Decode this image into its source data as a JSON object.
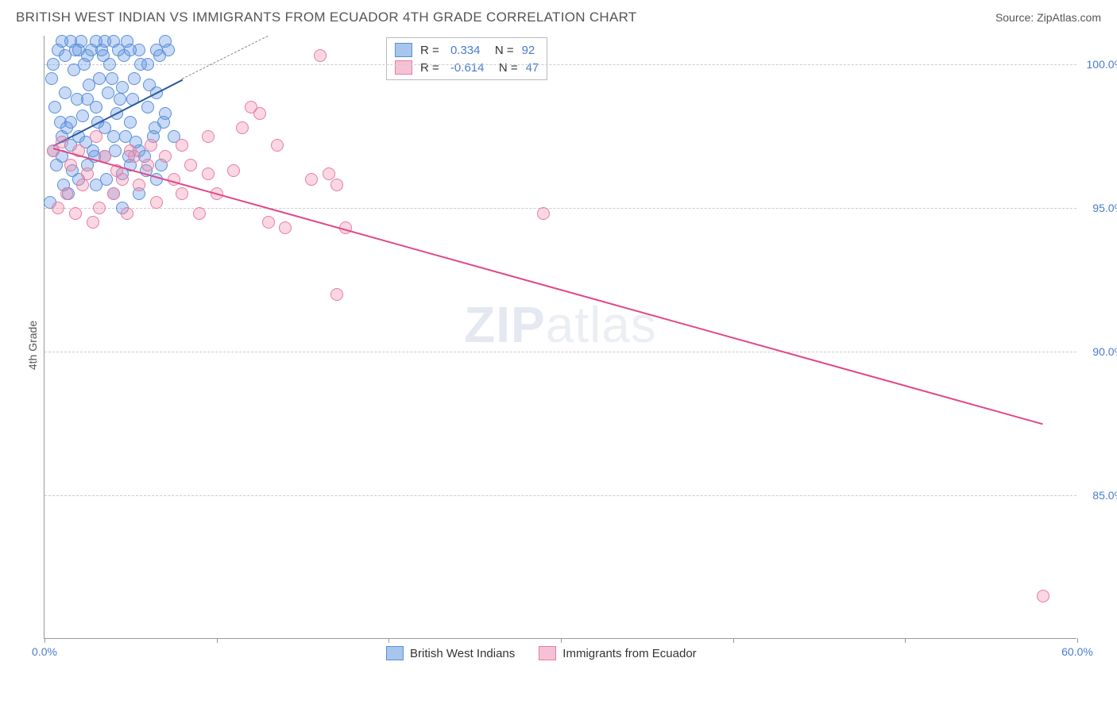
{
  "header": {
    "title": "BRITISH WEST INDIAN VS IMMIGRANTS FROM ECUADOR 4TH GRADE CORRELATION CHART",
    "source": "Source: ZipAtlas.com"
  },
  "chart": {
    "type": "scatter",
    "ylabel": "4th Grade",
    "xlim": [
      0,
      60
    ],
    "ylim": [
      80,
      101
    ],
    "xticks": [
      0,
      10,
      20,
      30,
      40,
      50,
      60
    ],
    "xtick_labels_shown": {
      "0": "0.0%",
      "60": "60.0%"
    },
    "yticks": [
      85,
      90,
      95,
      100
    ],
    "ytick_labels": {
      "85": "85.0%",
      "90": "90.0%",
      "95": "95.0%",
      "100": "100.0%"
    },
    "background_color": "#ffffff",
    "grid_color": "#cccccc",
    "axis_color": "#999999",
    "tick_label_color": "#4a7bd0",
    "watermark": {
      "text_bold": "ZIP",
      "text_rest": "atlas"
    },
    "series": [
      {
        "name": "British West Indians",
        "color_fill": "rgba(100,150,230,0.35)",
        "color_stroke": "#5a8fd6",
        "legend_swatch_fill": "#a8c5ed",
        "legend_swatch_border": "#5a8fd6",
        "R": "0.334",
        "N": "92",
        "trend": {
          "x1": 0.5,
          "y1": 97.2,
          "x2": 8.0,
          "y2": 99.5,
          "color": "#2c5aa0",
          "width": 2
        },
        "trend_ext": {
          "x1": 8.0,
          "y1": 99.5,
          "x2": 13.0,
          "y2": 101.0,
          "color": "#888",
          "dashed": true
        },
        "points": [
          [
            0.3,
            95.2
          ],
          [
            0.5,
            97.0
          ],
          [
            0.6,
            98.5
          ],
          [
            0.8,
            100.5
          ],
          [
            1.0,
            96.8
          ],
          [
            1.0,
            97.5
          ],
          [
            1.2,
            99.0
          ],
          [
            1.2,
            100.3
          ],
          [
            1.4,
            95.5
          ],
          [
            1.5,
            97.2
          ],
          [
            1.5,
            98.0
          ],
          [
            1.7,
            99.8
          ],
          [
            1.8,
            100.5
          ],
          [
            2.0,
            96.0
          ],
          [
            2.0,
            97.5
          ],
          [
            2.2,
            98.2
          ],
          [
            2.3,
            100.0
          ],
          [
            2.5,
            96.5
          ],
          [
            2.5,
            98.8
          ],
          [
            2.7,
            100.5
          ],
          [
            2.8,
            97.0
          ],
          [
            3.0,
            95.8
          ],
          [
            3.0,
            98.5
          ],
          [
            3.2,
            99.5
          ],
          [
            3.3,
            100.5
          ],
          [
            3.5,
            96.8
          ],
          [
            3.5,
            97.8
          ],
          [
            3.7,
            99.0
          ],
          [
            3.8,
            100.0
          ],
          [
            4.0,
            95.5
          ],
          [
            4.0,
            97.5
          ],
          [
            4.2,
            98.3
          ],
          [
            4.3,
            100.5
          ],
          [
            4.5,
            96.2
          ],
          [
            4.5,
            99.2
          ],
          [
            4.7,
            97.5
          ],
          [
            4.8,
            100.8
          ],
          [
            5.0,
            96.5
          ],
          [
            5.0,
            98.0
          ],
          [
            5.2,
            99.5
          ],
          [
            5.5,
            97.0
          ],
          [
            5.5,
            100.5
          ],
          [
            5.8,
            96.8
          ],
          [
            6.0,
            98.5
          ],
          [
            6.0,
            100.0
          ],
          [
            6.3,
            97.5
          ],
          [
            6.5,
            99.0
          ],
          [
            6.5,
            100.5
          ],
          [
            6.8,
            96.5
          ],
          [
            7.0,
            98.3
          ],
          [
            7.0,
            100.8
          ],
          [
            0.4,
            99.5
          ],
          [
            0.7,
            96.5
          ],
          [
            0.9,
            98.0
          ],
          [
            1.1,
            95.8
          ],
          [
            1.3,
            97.8
          ],
          [
            1.6,
            96.3
          ],
          [
            1.9,
            98.8
          ],
          [
            2.1,
            100.8
          ],
          [
            2.4,
            97.3
          ],
          [
            2.6,
            99.3
          ],
          [
            2.9,
            96.8
          ],
          [
            3.1,
            98.0
          ],
          [
            3.4,
            100.3
          ],
          [
            3.6,
            96.0
          ],
          [
            3.9,
            99.5
          ],
          [
            4.1,
            97.0
          ],
          [
            4.4,
            98.8
          ],
          [
            4.6,
            100.3
          ],
          [
            4.9,
            96.8
          ],
          [
            5.1,
            98.8
          ],
          [
            5.3,
            97.3
          ],
          [
            5.6,
            100.0
          ],
          [
            5.9,
            96.3
          ],
          [
            6.1,
            99.3
          ],
          [
            6.4,
            97.8
          ],
          [
            6.7,
            100.3
          ],
          [
            6.9,
            98.0
          ],
          [
            7.2,
            100.5
          ],
          [
            3.0,
            100.8
          ],
          [
            2.0,
            100.5
          ],
          [
            1.5,
            100.8
          ],
          [
            4.0,
            100.8
          ],
          [
            5.0,
            100.5
          ],
          [
            0.5,
            100.0
          ],
          [
            1.0,
            100.8
          ],
          [
            2.5,
            100.3
          ],
          [
            3.5,
            100.8
          ],
          [
            7.5,
            97.5
          ],
          [
            6.5,
            96.0
          ],
          [
            5.5,
            95.5
          ],
          [
            4.5,
            95.0
          ]
        ]
      },
      {
        "name": "Immigrants from Ecuador",
        "color_fill": "rgba(240,140,170,0.35)",
        "color_stroke": "#e87ba5",
        "legend_swatch_fill": "#f5c1d4",
        "legend_swatch_border": "#e87ba5",
        "R": "-0.614",
        "N": "47",
        "trend": {
          "x1": 0.5,
          "y1": 97.1,
          "x2": 58.0,
          "y2": 87.5,
          "color": "#e04888",
          "width": 2
        },
        "points": [
          [
            0.5,
            97.0
          ],
          [
            1.0,
            97.3
          ],
          [
            1.5,
            96.5
          ],
          [
            2.0,
            97.0
          ],
          [
            2.5,
            96.2
          ],
          [
            3.0,
            97.5
          ],
          [
            3.5,
            96.8
          ],
          [
            4.0,
            95.5
          ],
          [
            4.5,
            96.0
          ],
          [
            5.0,
            97.0
          ],
          [
            5.5,
            95.8
          ],
          [
            6.0,
            96.5
          ],
          [
            6.5,
            95.2
          ],
          [
            7.0,
            96.8
          ],
          [
            7.5,
            96.0
          ],
          [
            8.0,
            95.5
          ],
          [
            8.5,
            96.5
          ],
          [
            9.0,
            94.8
          ],
          [
            9.5,
            96.2
          ],
          [
            10.0,
            95.5
          ],
          [
            11.0,
            96.3
          ],
          [
            12.0,
            98.5
          ],
          [
            12.5,
            98.3
          ],
          [
            13.0,
            94.5
          ],
          [
            13.5,
            97.2
          ],
          [
            14.0,
            94.3
          ],
          [
            15.5,
            96.0
          ],
          [
            16.0,
            100.3
          ],
          [
            16.5,
            96.2
          ],
          [
            17.0,
            95.8
          ],
          [
            17.5,
            94.3
          ],
          [
            29.0,
            94.8
          ],
          [
            0.8,
            95.0
          ],
          [
            1.3,
            95.5
          ],
          [
            2.2,
            95.8
          ],
          [
            3.2,
            95.0
          ],
          [
            4.2,
            96.3
          ],
          [
            5.2,
            96.8
          ],
          [
            6.2,
            97.2
          ],
          [
            2.8,
            94.5
          ],
          [
            1.8,
            94.8
          ],
          [
            4.8,
            94.8
          ],
          [
            17.0,
            92.0
          ],
          [
            8.0,
            97.2
          ],
          [
            9.5,
            97.5
          ],
          [
            11.5,
            97.8
          ],
          [
            58.0,
            81.5
          ]
        ]
      }
    ],
    "bottom_legend": [
      {
        "label": "British West Indians",
        "fill": "#a8c5ed",
        "border": "#5a8fd6"
      },
      {
        "label": "Immigrants from Ecuador",
        "fill": "#f5c1d4",
        "border": "#e87ba5"
      }
    ]
  }
}
